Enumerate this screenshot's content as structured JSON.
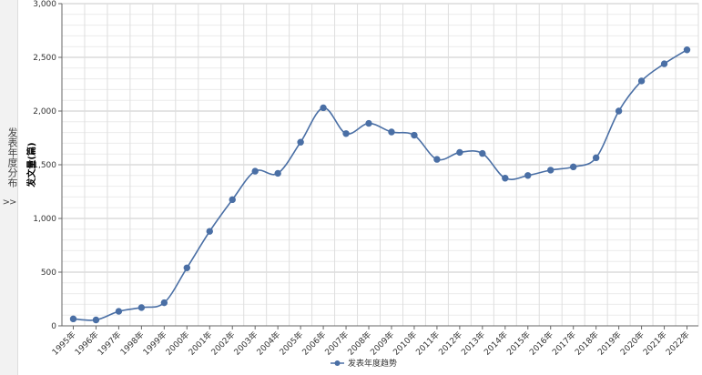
{
  "side_tab": {
    "label": "发表年度分布",
    "arrow": ">>"
  },
  "chart_data": {
    "type": "line",
    "title": "",
    "ylabel": "发文量(篇)",
    "xlabel": "",
    "ylim": [
      0,
      3000
    ],
    "y_ticks": [
      "0",
      "500",
      "1,000",
      "1,500",
      "2,000",
      "2,500",
      "3,000"
    ],
    "grid": true,
    "legend_position": "bottom",
    "categories": [
      "1995年",
      "1996年",
      "1997年",
      "1998年",
      "1999年",
      "2000年",
      "2001年",
      "2002年",
      "2003年",
      "2004年",
      "2005年",
      "2006年",
      "2007年",
      "2008年",
      "2009年",
      "2010年",
      "2011年",
      "2012年",
      "2013年",
      "2014年",
      "2015年",
      "2016年",
      "2017年",
      "2018年",
      "2019年",
      "2020年",
      "2021年",
      "2022年"
    ],
    "series": [
      {
        "name": "发表年度趋势",
        "color": "#4a6fa5",
        "values": [
          65,
          55,
          135,
          170,
          215,
          540,
          880,
          1175,
          1440,
          1420,
          1710,
          2030,
          1790,
          1885,
          1805,
          1775,
          1550,
          1615,
          1605,
          1375,
          1400,
          1450,
          1480,
          1565,
          2000,
          2280,
          2440,
          2570
        ]
      }
    ]
  }
}
